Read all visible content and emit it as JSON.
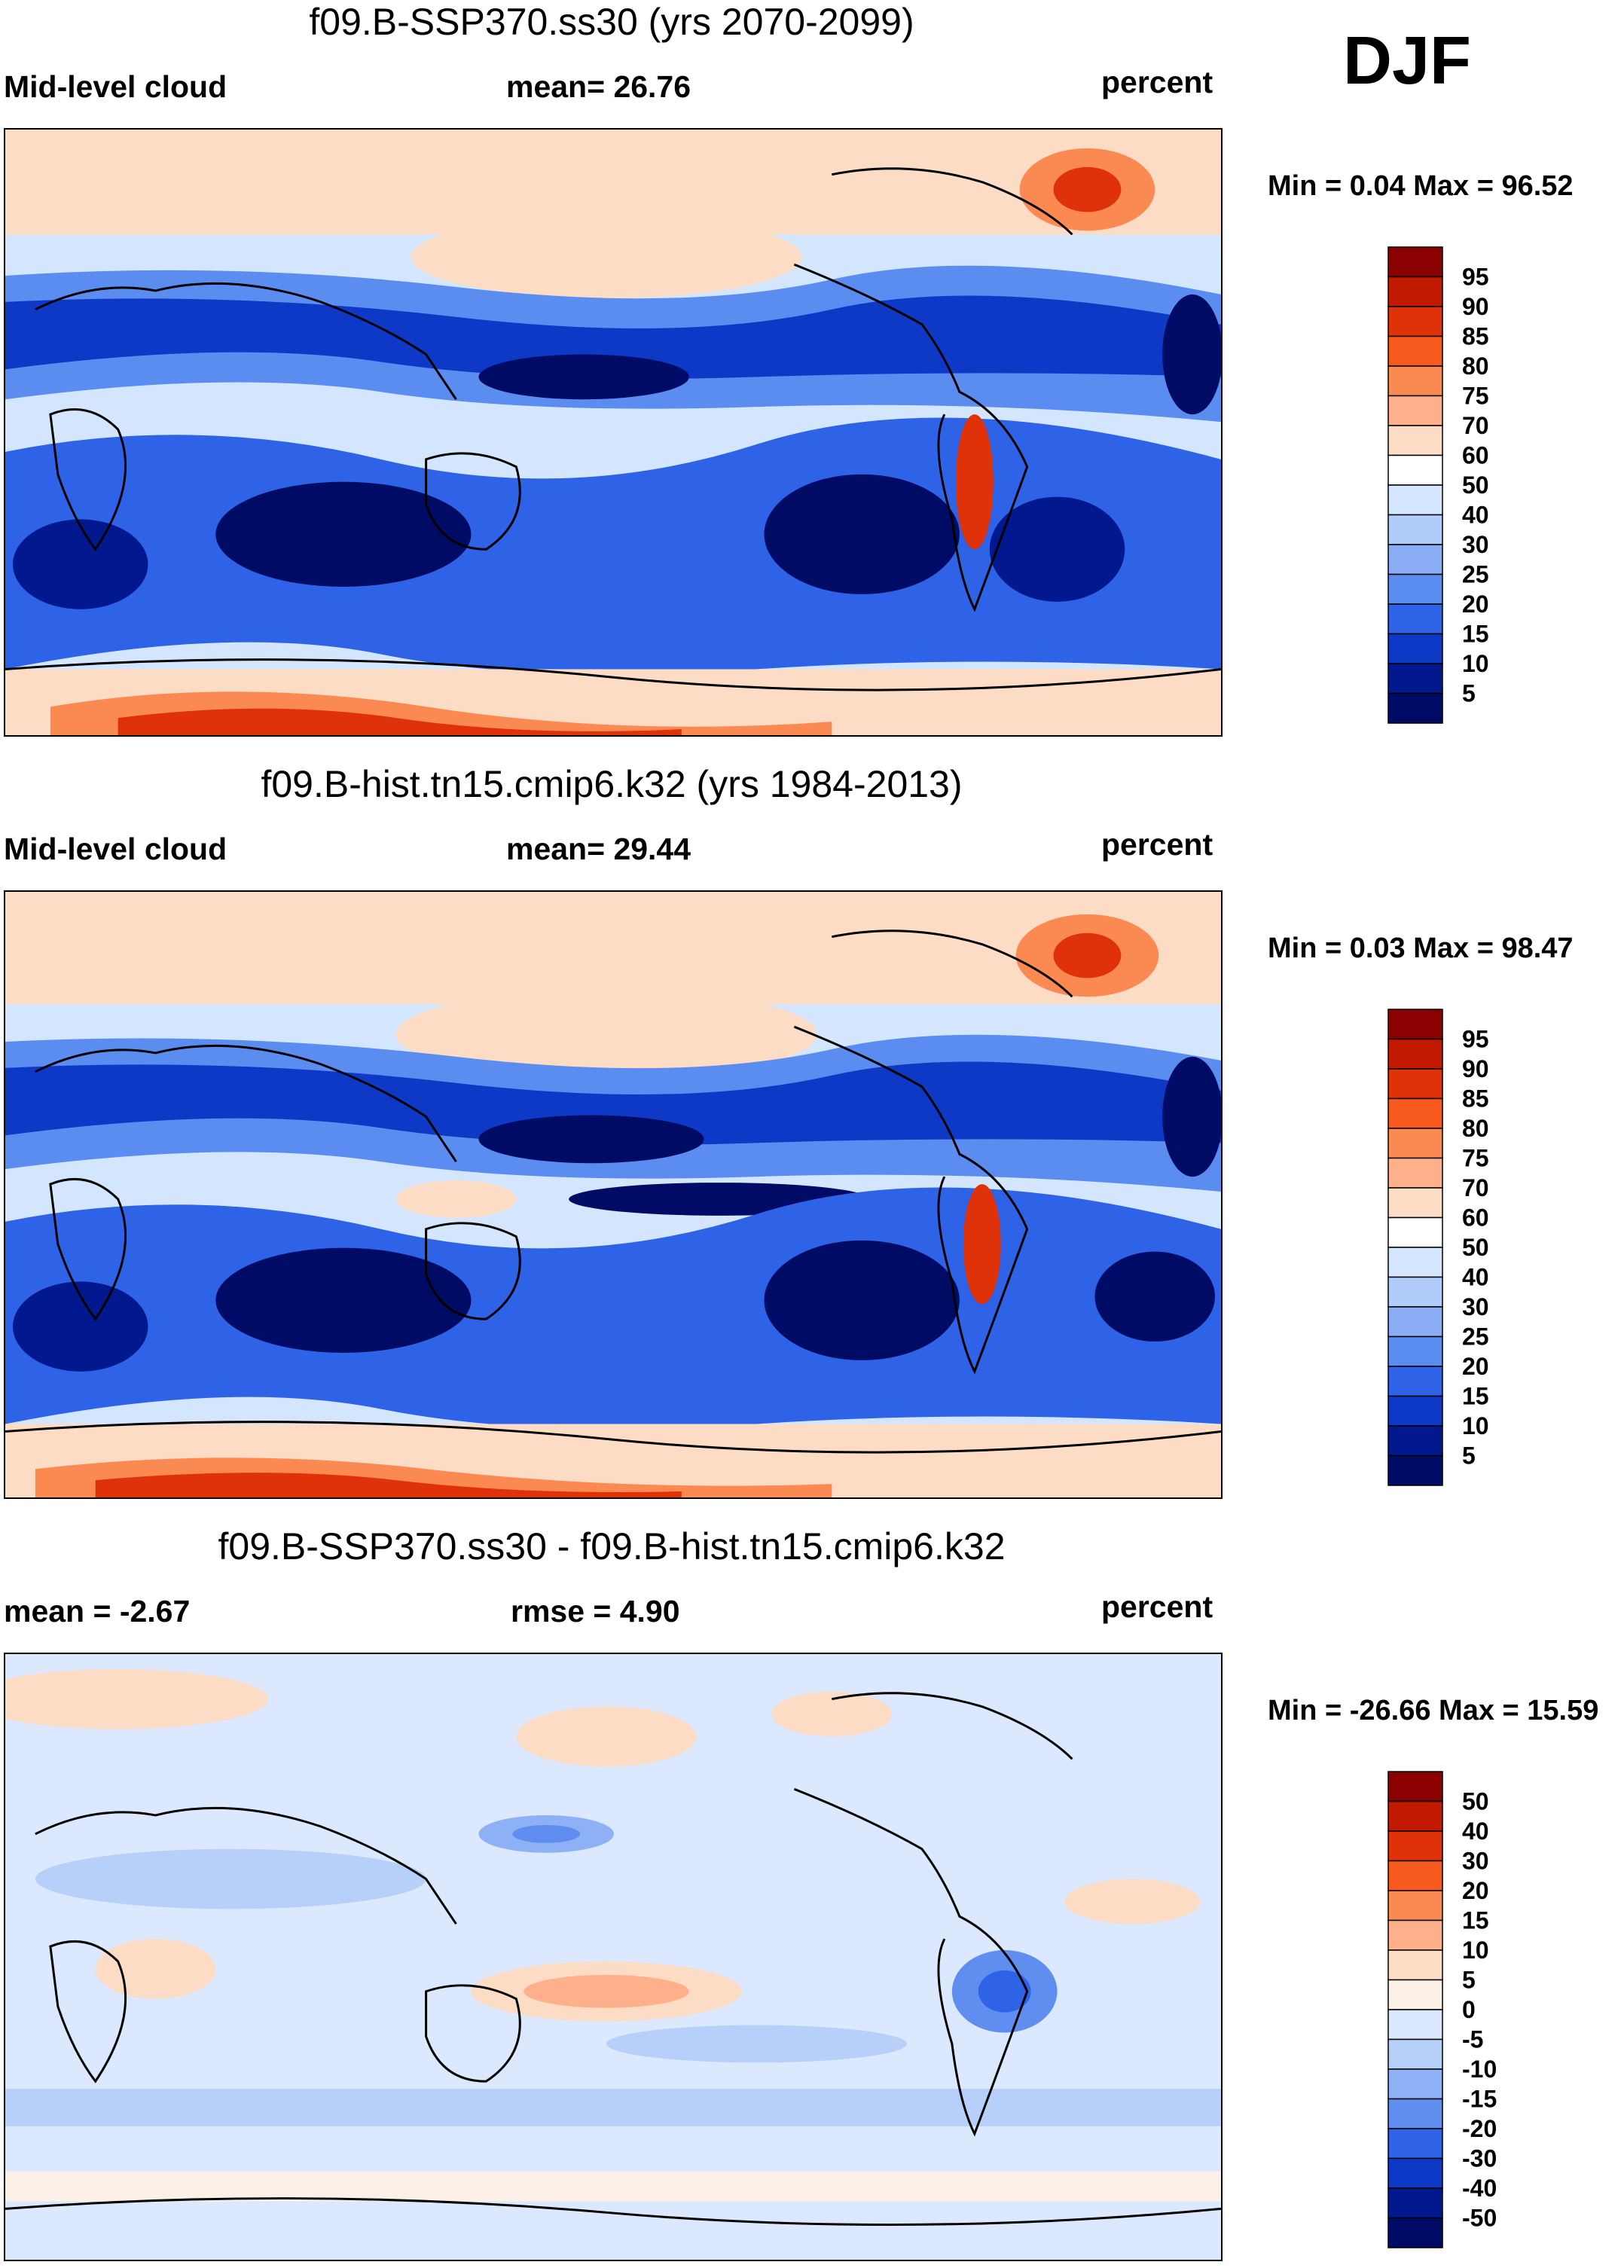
{
  "season": "DJF",
  "chart_data": [
    {
      "type": "heatmap",
      "title": "f09.B-SSP370.ss30 (yrs 2070-2099)",
      "left_label": "Mid-level cloud",
      "center_label": "mean=  26.76",
      "units": "percent",
      "minmax": "Min =   0.04 Max =  96.52",
      "levels": [
        "95",
        "90",
        "85",
        "80",
        "75",
        "70",
        "60",
        "50",
        "40",
        "30",
        "25",
        "20",
        "15",
        "10",
        "5"
      ],
      "colors": [
        "#8b0000",
        "#c21a00",
        "#e03208",
        "#f85a1e",
        "#fb8a52",
        "#fdb089",
        "#fddcc6",
        "#ffffff",
        "#d4e6fd",
        "#b0ccfa",
        "#8aadf5",
        "#5b8cf0",
        "#2f63e7",
        "#0d39c6",
        "#02188e",
        "#000b66"
      ]
    },
    {
      "type": "heatmap",
      "title": "f09.B-hist.tn15.cmip6.k32 (yrs 1984-2013)",
      "left_label": "Mid-level cloud",
      "center_label": "mean=  29.44",
      "units": "percent",
      "minmax": "Min =   0.03 Max =  98.47",
      "levels": [
        "95",
        "90",
        "85",
        "80",
        "75",
        "70",
        "60",
        "50",
        "40",
        "30",
        "25",
        "20",
        "15",
        "10",
        "5"
      ],
      "colors": [
        "#8b0000",
        "#c21a00",
        "#e03208",
        "#f85a1e",
        "#fb8a52",
        "#fdb089",
        "#fddcc6",
        "#ffffff",
        "#d4e6fd",
        "#b0ccfa",
        "#8aadf5",
        "#5b8cf0",
        "#2f63e7",
        "#0d39c6",
        "#02188e",
        "#000b66"
      ]
    },
    {
      "type": "heatmap",
      "title": "f09.B-SSP370.ss30 - f09.B-hist.tn15.cmip6.k32",
      "left_label": "mean =  -2.67",
      "center_label": "rmse =    4.90",
      "units": "percent",
      "minmax": "Min = -26.66 Max =  15.59",
      "levels": [
        "50",
        "40",
        "30",
        "20",
        "15",
        "10",
        "5",
        "0",
        "-5",
        "-10",
        "-15",
        "-20",
        "-30",
        "-40",
        "-50"
      ],
      "colors": [
        "#8b0000",
        "#c21a00",
        "#e03208",
        "#f85a1e",
        "#fb8a52",
        "#fdb089",
        "#fddcc6",
        "#fdf0e6",
        "#dbe8fd",
        "#b7d0fa",
        "#8eb1f5",
        "#5f8ef0",
        "#2f63e7",
        "#0d39c6",
        "#02188e",
        "#000b66"
      ]
    }
  ]
}
